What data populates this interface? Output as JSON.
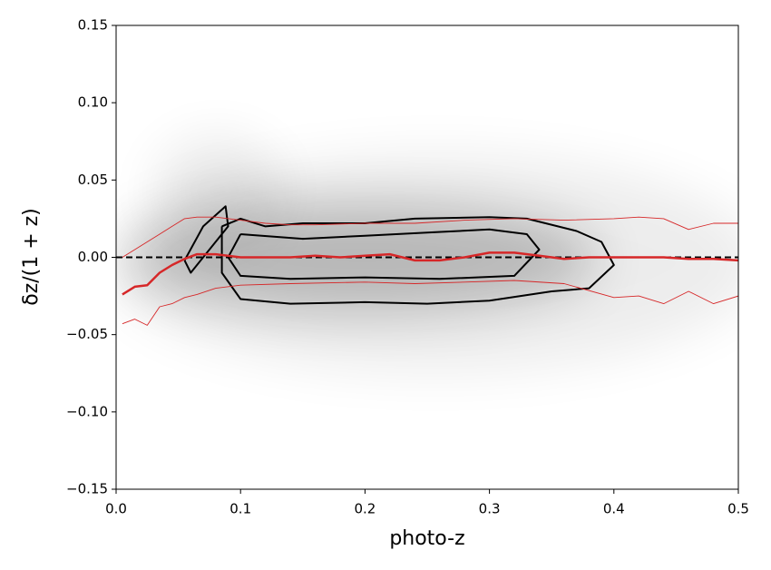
{
  "chart_data": {
    "type": "line",
    "xlabel": "photo-z",
    "ylabel": "δz/(1 + z)",
    "xlim": [
      0,
      0.5
    ],
    "ylim": [
      -0.15,
      0.15
    ],
    "xticks": [
      {
        "value": 0,
        "label": "0.0"
      },
      0.1,
      0.2,
      0.3,
      0.4,
      0.5
    ],
    "yticks": [
      {
        "value": -0.15,
        "label": "−0.15"
      },
      {
        "value": -0.1,
        "label": "−0.10"
      },
      {
        "value": -0.05,
        "label": "−0.05"
      },
      {
        "value": 0,
        "label": "0.00"
      },
      0.05,
      {
        "value": 0.1,
        "label": "0.10"
      },
      0.15
    ],
    "hline": {
      "value": 0,
      "color": "#000000"
    },
    "series": [
      {
        "color": "#d62728",
        "width": 2.5,
        "x": [
          0.005,
          0.015,
          0.025,
          0.035,
          0.045,
          0.055,
          0.065,
          0.08,
          0.1,
          0.12,
          0.14,
          0.16,
          0.18,
          0.2,
          0.22,
          0.24,
          0.26,
          0.28,
          0.3,
          0.32,
          0.34,
          0.36,
          0.38,
          0.4,
          0.42,
          0.44,
          0.46,
          0.48,
          0.5
        ],
        "values": [
          -0.024,
          -0.019,
          -0.018,
          -0.01,
          -0.005,
          -0.001,
          0.002,
          0.002,
          0.0,
          0.0,
          0.0,
          0.001,
          0.0,
          0.001,
          0.002,
          -0.002,
          -0.002,
          0.0,
          0.003,
          0.003,
          0.001,
          -0.001,
          0.0,
          0.0,
          0.0,
          0.0,
          -0.001,
          -0.001,
          -0.002
        ]
      },
      {
        "color": "#d62728",
        "width": 0.9,
        "x": [
          0.005,
          0.015,
          0.025,
          0.035,
          0.045,
          0.055,
          0.065,
          0.08,
          0.1,
          0.12,
          0.14,
          0.16,
          0.2,
          0.24,
          0.28,
          0.32,
          0.36,
          0.4,
          0.42,
          0.44,
          0.46,
          0.48,
          0.5
        ],
        "values": [
          0.0,
          0.005,
          0.01,
          0.015,
          0.02,
          0.025,
          0.026,
          0.026,
          0.024,
          0.022,
          0.021,
          0.021,
          0.022,
          0.022,
          0.024,
          0.025,
          0.024,
          0.025,
          0.026,
          0.025,
          0.018,
          0.022,
          0.022
        ]
      },
      {
        "color": "#d62728",
        "width": 0.9,
        "x": [
          0.005,
          0.015,
          0.025,
          0.035,
          0.045,
          0.055,
          0.065,
          0.08,
          0.1,
          0.14,
          0.2,
          0.24,
          0.28,
          0.32,
          0.36,
          0.4,
          0.42,
          0.44,
          0.46,
          0.48,
          0.5
        ],
        "values": [
          -0.043,
          -0.04,
          -0.044,
          -0.032,
          -0.03,
          -0.026,
          -0.024,
          -0.02,
          -0.018,
          -0.017,
          -0.016,
          -0.017,
          -0.016,
          -0.015,
          -0.017,
          -0.026,
          -0.025,
          -0.03,
          -0.022,
          -0.03,
          -0.025
        ]
      }
    ],
    "contours": [
      {
        "color": "#000000",
        "x": [
          0.085,
          0.1,
          0.12,
          0.15,
          0.2,
          0.24,
          0.3,
          0.33,
          0.37,
          0.39,
          0.4,
          0.38,
          0.35,
          0.3,
          0.25,
          0.2,
          0.14,
          0.1,
          0.085,
          0.085
        ],
        "values": [
          0.02,
          0.025,
          0.02,
          0.022,
          0.022,
          0.025,
          0.026,
          0.025,
          0.017,
          0.01,
          -0.005,
          -0.02,
          -0.022,
          -0.028,
          -0.03,
          -0.029,
          -0.03,
          -0.027,
          -0.01,
          0.02
        ]
      },
      {
        "color": "#000000",
        "x": [
          0.1,
          0.15,
          0.2,
          0.25,
          0.3,
          0.33,
          0.34,
          0.32,
          0.26,
          0.2,
          0.14,
          0.1,
          0.09,
          0.1
        ],
        "values": [
          0.015,
          0.012,
          0.014,
          0.016,
          0.018,
          0.015,
          0.005,
          -0.012,
          -0.014,
          -0.013,
          -0.014,
          -0.012,
          0.0,
          0.015
        ]
      },
      {
        "color": "#000000",
        "x": [
          0.055,
          0.07,
          0.088,
          0.09,
          0.07,
          0.06,
          0.055
        ],
        "values": [
          -0.002,
          0.02,
          0.033,
          0.02,
          0.0,
          -0.01,
          -0.002
        ]
      }
    ]
  }
}
